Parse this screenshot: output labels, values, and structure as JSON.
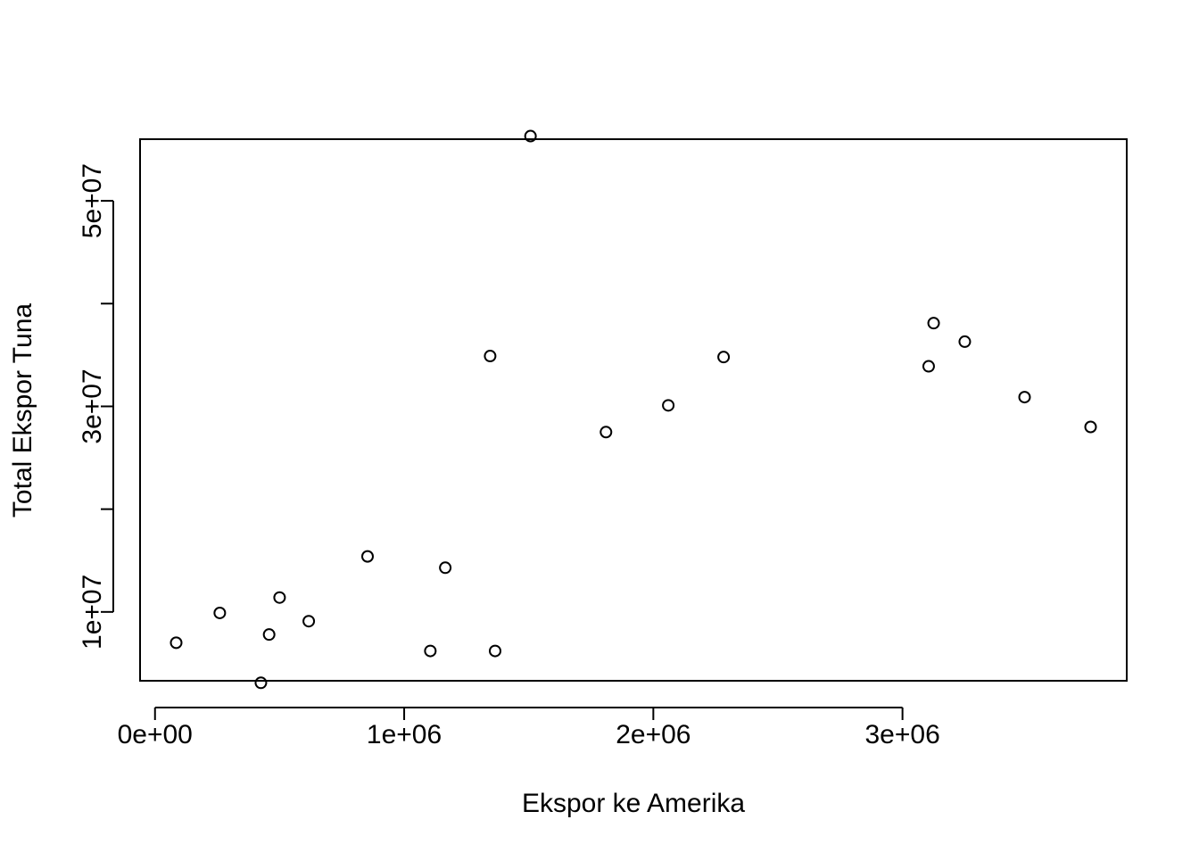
{
  "chart_data": {
    "type": "scatter",
    "title": "",
    "xlabel": "Ekspor ke Amerika",
    "ylabel": "Total Ekspor Tuna",
    "xlim": [
      -60000,
      3900000
    ],
    "ylim": [
      3300000,
      56000000
    ],
    "x_ticks": [
      {
        "value": 0,
        "label": "0e+00"
      },
      {
        "value": 1000000,
        "label": "1e+06"
      },
      {
        "value": 2000000,
        "label": "2e+06"
      },
      {
        "value": 3000000,
        "label": "3e+06"
      }
    ],
    "y_ticks": [
      {
        "value": 10000000,
        "label": "1e+07"
      },
      {
        "value": 20000000,
        "label": ""
      },
      {
        "value": 30000000,
        "label": "3e+07"
      },
      {
        "value": 40000000,
        "label": ""
      },
      {
        "value": 50000000,
        "label": "5e+07"
      }
    ],
    "grid": false,
    "marker": "open-circle",
    "marker_color": "#000000",
    "points": [
      {
        "x": 85000,
        "y": 7000000
      },
      {
        "x": 260000,
        "y": 9900000
      },
      {
        "x": 425000,
        "y": 3100000
      },
      {
        "x": 458000,
        "y": 7800000
      },
      {
        "x": 500000,
        "y": 11400000
      },
      {
        "x": 617000,
        "y": 9100000
      },
      {
        "x": 853000,
        "y": 15400000
      },
      {
        "x": 1105000,
        "y": 6200000
      },
      {
        "x": 1165000,
        "y": 14300000
      },
      {
        "x": 1345000,
        "y": 34900000
      },
      {
        "x": 1365000,
        "y": 6200000
      },
      {
        "x": 1507000,
        "y": 56300000
      },
      {
        "x": 1810000,
        "y": 27500000
      },
      {
        "x": 2060000,
        "y": 30100000
      },
      {
        "x": 2282000,
        "y": 34800000
      },
      {
        "x": 3105000,
        "y": 33900000
      },
      {
        "x": 3125000,
        "y": 38100000
      },
      {
        "x": 3250000,
        "y": 36300000
      },
      {
        "x": 3490000,
        "y": 30900000
      },
      {
        "x": 3755000,
        "y": 28000000
      }
    ]
  }
}
